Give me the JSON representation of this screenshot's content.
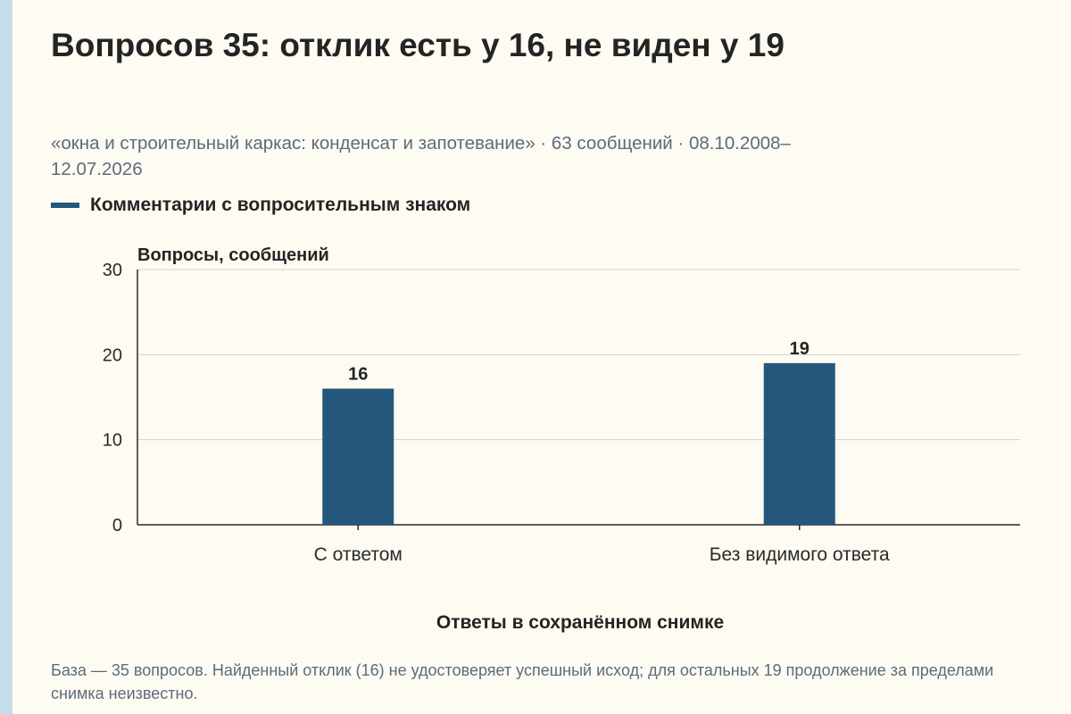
{
  "header": {
    "title": "Вопросов 35: отклик есть у 16, не виден у 19",
    "subtitle": "«окна и строительный каркас: конденсат и запотевание» · 63 сообщений · 08.10.2008–12.07.2026"
  },
  "legend": {
    "label": "Комментарии с вопросительным знаком",
    "color": "#24577b"
  },
  "chart_data": {
    "type": "bar",
    "categories": [
      "С ответом",
      "Без видимого ответа"
    ],
    "series": [
      {
        "name": "Комментарии с вопросительным знаком",
        "values": [
          16,
          19
        ]
      }
    ],
    "data_labels": [
      "16",
      "19"
    ],
    "ylabel": "Вопросы, сообщений",
    "xlabel": "Ответы в сохранённом снимке",
    "ylim": [
      0,
      30
    ],
    "yticks": [
      0,
      10,
      20,
      30
    ],
    "grid": true,
    "bar_color": "#24577b"
  },
  "footer": {
    "note": "База — 35 вопросов. Найденный отклик (16) не удостоверяет успешный исход; для остальных 19 продолжение за пределами снимка неизвестно."
  }
}
